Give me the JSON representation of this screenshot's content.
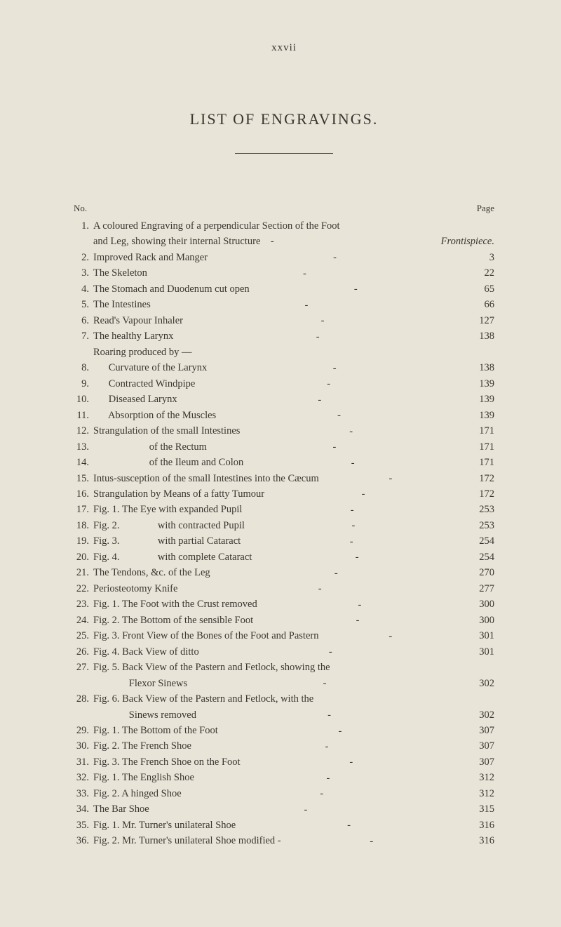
{
  "pageHeader": "xxvii",
  "title": "LIST OF ENGRAVINGS.",
  "columnHeaders": {
    "no": "No.",
    "page": "Page"
  },
  "entries": [
    {
      "no": "1.",
      "text": "A coloured Engraving of a perpendicular Section of the Foot",
      "page": "",
      "multiline": true,
      "line2": "and Leg, showing their internal Structure    -",
      "page2": "Frontispiece.",
      "frontispiece": true
    },
    {
      "no": "2.",
      "text": "Improved Rack and Manger",
      "page": "3"
    },
    {
      "no": "3.",
      "text": "The Skeleton",
      "page": "22"
    },
    {
      "no": "4.",
      "text": "The Stomach and Duodenum cut open",
      "page": "65"
    },
    {
      "no": "5.",
      "text": "The Intestines",
      "page": "66"
    },
    {
      "no": "6.",
      "text": "Read's Vapour Inhaler",
      "page": "127"
    },
    {
      "no": "7.",
      "text": "The healthy Larynx",
      "page": "138"
    },
    {
      "no": "",
      "text": "Roaring produced by —",
      "page": "",
      "noLeader": true,
      "indent": 1
    },
    {
      "no": "8.",
      "text": "      Curvature of the Larynx",
      "page": "138"
    },
    {
      "no": "9.",
      "text": "      Contracted Windpipe",
      "page": "139"
    },
    {
      "no": "10.",
      "text": "      Diseased Larynx",
      "page": "139"
    },
    {
      "no": "11.",
      "text": "      Absorption of the Muscles",
      "page": "139"
    },
    {
      "no": "12.",
      "text": "Strangulation of the small Intestines",
      "page": "171"
    },
    {
      "no": "13.",
      "text": "                      of the Rectum",
      "page": "171"
    },
    {
      "no": "14.",
      "text": "                      of the Ileum and Colon",
      "page": "171"
    },
    {
      "no": "15.",
      "text": "Intus-susception of the small Intestines into the Cæcum",
      "page": "172"
    },
    {
      "no": "16.",
      "text": "Strangulation by Means of a fatty Tumour",
      "page": "172"
    },
    {
      "no": "17.",
      "text": "Fig. 1. The Eye with expanded Pupil",
      "page": "253"
    },
    {
      "no": "18.",
      "text": "Fig. 2.               with contracted Pupil",
      "page": "253"
    },
    {
      "no": "19.",
      "text": "Fig. 3.               with partial Cataract",
      "page": "254"
    },
    {
      "no": "20.",
      "text": "Fig. 4.               with complete Cataract",
      "page": "254"
    },
    {
      "no": "21.",
      "text": "The Tendons, &c. of the Leg",
      "page": "270"
    },
    {
      "no": "22.",
      "text": "Periosteotomy Knife",
      "page": "277"
    },
    {
      "no": "23.",
      "text": "Fig. 1. The Foot with the Crust removed",
      "page": "300"
    },
    {
      "no": "24.",
      "text": "Fig. 2. The Bottom of the sensible Foot",
      "page": "300"
    },
    {
      "no": "25.",
      "text": "Fig. 3. Front View of the Bones of the Foot and Pastern",
      "page": "301"
    },
    {
      "no": "26.",
      "text": "Fig. 4. Back View of ditto",
      "page": "301"
    },
    {
      "no": "27.",
      "text": "Fig. 5. Back View of the Pastern and Fetlock, showing the",
      "page": "",
      "multiline": true,
      "line2": "              Flexor Sinews",
      "page2": "302"
    },
    {
      "no": "28.",
      "text": "Fig. 6. Back View of the Pastern and Fetlock, with the",
      "page": "",
      "multiline": true,
      "line2": "              Sinews removed",
      "page2": "302"
    },
    {
      "no": "29.",
      "text": "Fig. 1. The Bottom of the Foot",
      "page": "307"
    },
    {
      "no": "30.",
      "text": "Fig. 2. The French Shoe",
      "page": "307"
    },
    {
      "no": "31.",
      "text": "Fig. 3. The French Shoe on the Foot",
      "page": "307"
    },
    {
      "no": "32.",
      "text": "Fig. 1. The English Shoe",
      "page": "312"
    },
    {
      "no": "33.",
      "text": "Fig. 2. A hinged Shoe",
      "page": "312"
    },
    {
      "no": "34.",
      "text": "The Bar Shoe",
      "page": "315"
    },
    {
      "no": "35.",
      "text": "Fig. 1. Mr. Turner's unilateral Shoe",
      "page": "316"
    },
    {
      "no": "36.",
      "text": "Fig. 2. Mr. Turner's unilateral Shoe modified -",
      "page": "316"
    }
  ],
  "colors": {
    "background": "#e8e4d8",
    "text": "#3a3630"
  },
  "typography": {
    "fontFamily": "Georgia, Times New Roman, serif",
    "baseFontSize": 14.5,
    "titleFontSize": 22,
    "headerFontSize": 13
  }
}
